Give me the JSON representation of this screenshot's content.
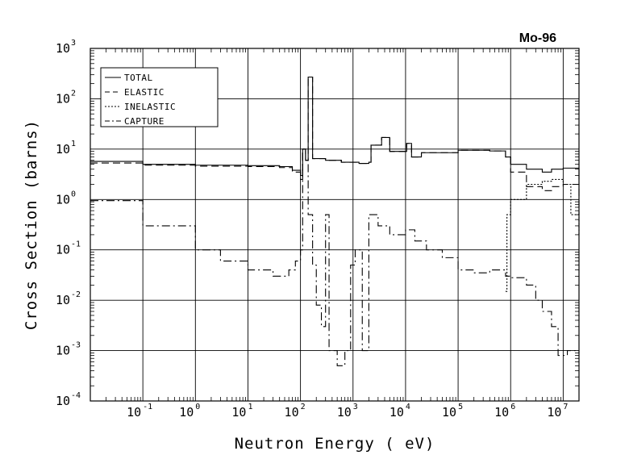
{
  "chart_data": {
    "type": "line",
    "title": "Mo-96",
    "xlabel": "Neutron Energy ( eV)",
    "ylabel": "Cross Section (barns)",
    "x_scale": "log",
    "y_scale": "log",
    "xlim": [
      0.01,
      20000000
    ],
    "ylim": [
      0.0001,
      1000
    ],
    "grid": true,
    "legend_position": "top-left",
    "x_ticks": [
      {
        "base": "10",
        "exp": "-1",
        "value": 0.1
      },
      {
        "base": "10",
        "exp": "0",
        "value": 1
      },
      {
        "base": "10",
        "exp": "1",
        "value": 10
      },
      {
        "base": "10",
        "exp": "2",
        "value": 100
      },
      {
        "base": "10",
        "exp": "3",
        "value": 1000
      },
      {
        "base": "10",
        "exp": "4",
        "value": 10000
      },
      {
        "base": "10",
        "exp": "5",
        "value": 100000
      },
      {
        "base": "10",
        "exp": "6",
        "value": 1000000
      },
      {
        "base": "10",
        "exp": "7",
        "value": 10000000
      }
    ],
    "y_ticks": [
      {
        "base": "10",
        "exp": "-4",
        "value": 0.0001
      },
      {
        "base": "10",
        "exp": "-3",
        "value": 0.001
      },
      {
        "base": "10",
        "exp": "-2",
        "value": 0.01
      },
      {
        "base": "10",
        "exp": "-1",
        "value": 0.1
      },
      {
        "base": "10",
        "exp": "0",
        "value": 1
      },
      {
        "base": "10",
        "exp": "1",
        "value": 10
      },
      {
        "base": "10",
        "exp": "2",
        "value": 100
      },
      {
        "base": "10",
        "exp": "3",
        "value": 1000
      }
    ],
    "series": [
      {
        "name": "TOTAL",
        "style": "solid",
        "step": true,
        "points": [
          [
            0.01,
            5.7
          ],
          [
            0.1,
            5.0
          ],
          [
            1,
            4.8
          ],
          [
            10,
            4.7
          ],
          [
            40,
            4.5
          ],
          [
            70,
            3.8
          ],
          [
            100,
            3.0
          ],
          [
            110,
            10
          ],
          [
            125,
            6
          ],
          [
            140,
            270
          ],
          [
            170,
            6.5
          ],
          [
            300,
            6
          ],
          [
            600,
            5.5
          ],
          [
            1300,
            5.2
          ],
          [
            2000,
            5.5
          ],
          [
            2200,
            12
          ],
          [
            3500,
            17
          ],
          [
            5000,
            9
          ],
          [
            10000,
            9
          ],
          [
            10500,
            13
          ],
          [
            13000,
            7
          ],
          [
            20000,
            8.5
          ],
          [
            100000,
            9.5
          ],
          [
            400000,
            9.2
          ],
          [
            800000,
            7
          ],
          [
            1000000,
            5
          ],
          [
            2000000,
            4
          ],
          [
            4000000,
            3.5
          ],
          [
            6000000,
            4
          ],
          [
            10000000,
            4.2
          ],
          [
            20000000,
            2.5
          ]
        ]
      },
      {
        "name": "ELASTIC",
        "style": "dashed",
        "step": true,
        "points": [
          [
            0.01,
            5.3
          ],
          [
            0.1,
            4.8
          ],
          [
            1,
            4.6
          ],
          [
            10,
            4.5
          ],
          [
            40,
            4.3
          ],
          [
            70,
            3.5
          ],
          [
            100,
            2.5
          ],
          [
            110,
            10
          ],
          [
            125,
            6
          ],
          [
            140,
            270
          ],
          [
            170,
            6.5
          ],
          [
            300,
            6
          ],
          [
            600,
            5.5
          ],
          [
            1300,
            5.2
          ],
          [
            2000,
            5.5
          ],
          [
            2200,
            12
          ],
          [
            3500,
            17
          ],
          [
            5000,
            9
          ],
          [
            10000,
            9
          ],
          [
            10500,
            13
          ],
          [
            13000,
            7
          ],
          [
            20000,
            8.5
          ],
          [
            100000,
            9.5
          ],
          [
            400000,
            9.2
          ],
          [
            800000,
            7
          ],
          [
            1000000,
            3.5
          ],
          [
            2000000,
            1.8
          ],
          [
            4000000,
            1.5
          ],
          [
            6000000,
            1.8
          ],
          [
            10000000,
            2
          ],
          [
            20000000,
            0.5
          ]
        ]
      },
      {
        "name": "INELASTIC",
        "style": "dotted",
        "step": true,
        "points": [
          [
            800000,
            0.015
          ],
          [
            850000,
            0.5
          ],
          [
            1000000,
            1.0
          ],
          [
            2000000,
            2.0
          ],
          [
            4000000,
            2.3
          ],
          [
            6000000,
            2.5
          ],
          [
            10000000,
            2.0
          ],
          [
            14000000,
            0.5
          ],
          [
            20000000,
            0.2
          ]
        ]
      },
      {
        "name": "CAPTURE",
        "style": "dashdot",
        "step": true,
        "points": [
          [
            0.01,
            0.95
          ],
          [
            0.1,
            0.3
          ],
          [
            1,
            0.1
          ],
          [
            3,
            0.06
          ],
          [
            10,
            0.04
          ],
          [
            30,
            0.03
          ],
          [
            60,
            0.04
          ],
          [
            80,
            0.06
          ],
          [
            100,
            0.1
          ],
          [
            110,
            10
          ],
          [
            125,
            6
          ],
          [
            140,
            0.5
          ],
          [
            170,
            0.05
          ],
          [
            200,
            0.008
          ],
          [
            250,
            0.003
          ],
          [
            300,
            0.5
          ],
          [
            350,
            0.001
          ],
          [
            500,
            0.0005
          ],
          [
            700,
            0.001
          ],
          [
            900,
            0.05
          ],
          [
            1100,
            0.1
          ],
          [
            1500,
            0.001
          ],
          [
            2000,
            0.5
          ],
          [
            3000,
            0.3
          ],
          [
            5000,
            0.2
          ],
          [
            10000,
            0.25
          ],
          [
            15000,
            0.15
          ],
          [
            25000,
            0.1
          ],
          [
            50000,
            0.07
          ],
          [
            100000,
            0.04
          ],
          [
            200000,
            0.035
          ],
          [
            400000,
            0.04
          ],
          [
            800000,
            0.03
          ],
          [
            1000000,
            0.028
          ],
          [
            2000000,
            0.02
          ],
          [
            3000000,
            0.01
          ],
          [
            4000000,
            0.006
          ],
          [
            6000000,
            0.003
          ],
          [
            8000000,
            0.0008
          ],
          [
            12000000,
            0.001
          ],
          [
            20000000,
            0.0009
          ]
        ]
      }
    ]
  }
}
